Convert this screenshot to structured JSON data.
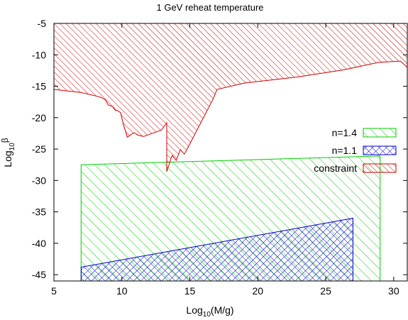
{
  "chart_data": {
    "type": "area",
    "title": "1 GeV reheat temperature",
    "xlabel": {
      "prefix": "Log",
      "sub": "10",
      "suffix": "(M/g)"
    },
    "ylabel": {
      "prefix": "Log",
      "sub": "10",
      "suffix": "β"
    },
    "xlim": [
      5,
      31
    ],
    "ylim": [
      -46,
      -5
    ],
    "xticks": [
      5,
      10,
      15,
      20,
      25,
      30
    ],
    "yticks": [
      -5,
      -10,
      -15,
      -20,
      -25,
      -30,
      -35,
      -40,
      -45
    ],
    "grid": false,
    "legend_position": "right",
    "series": [
      {
        "name": "n=1.4",
        "color": "#00cc00",
        "hatch": "diagonal-back",
        "points": [
          [
            7,
            -46
          ],
          [
            7,
            -27.5
          ],
          [
            29,
            -26.1
          ],
          [
            29,
            -46
          ]
        ]
      },
      {
        "name": "n=1.1",
        "color": "#0000cc",
        "hatch": "crosshatch",
        "points": [
          [
            7,
            -46
          ],
          [
            7,
            -43.8
          ],
          [
            27,
            -36
          ],
          [
            27,
            -46
          ]
        ]
      },
      {
        "name": "constraint",
        "color": "#cc0000",
        "hatch": "diagonal-back",
        "points": [
          [
            5,
            -5
          ],
          [
            31,
            -5
          ],
          [
            31,
            -12
          ],
          [
            30.5,
            -11
          ],
          [
            28.9,
            -11.2
          ],
          [
            26.3,
            -12.4
          ],
          [
            23,
            -13.5
          ],
          [
            21,
            -14
          ],
          [
            19,
            -14.5
          ],
          [
            17,
            -15.5
          ],
          [
            16.7,
            -17.1
          ],
          [
            14.8,
            -25
          ],
          [
            14.6,
            -25.8
          ],
          [
            14.3,
            -25.1
          ],
          [
            14,
            -26.8
          ],
          [
            13.7,
            -26
          ],
          [
            13.3,
            -28.6
          ],
          [
            13.3,
            -20.8
          ],
          [
            12.9,
            -22
          ],
          [
            12.5,
            -22.3
          ],
          [
            12.1,
            -22.6
          ],
          [
            11.6,
            -23
          ],
          [
            11.2,
            -22.8
          ],
          [
            10.9,
            -22.4
          ],
          [
            10.6,
            -22.8
          ],
          [
            10.4,
            -23.1
          ],
          [
            10.1,
            -21
          ],
          [
            9.9,
            -19.2
          ],
          [
            9.7,
            -18.9
          ],
          [
            9.5,
            -18.8
          ],
          [
            9.3,
            -18.2
          ],
          [
            9,
            -18
          ],
          [
            8.8,
            -17.2
          ],
          [
            8.5,
            -16.8
          ],
          [
            8,
            -16.5
          ],
          [
            7,
            -16
          ],
          [
            5,
            -15.5
          ]
        ]
      }
    ]
  }
}
